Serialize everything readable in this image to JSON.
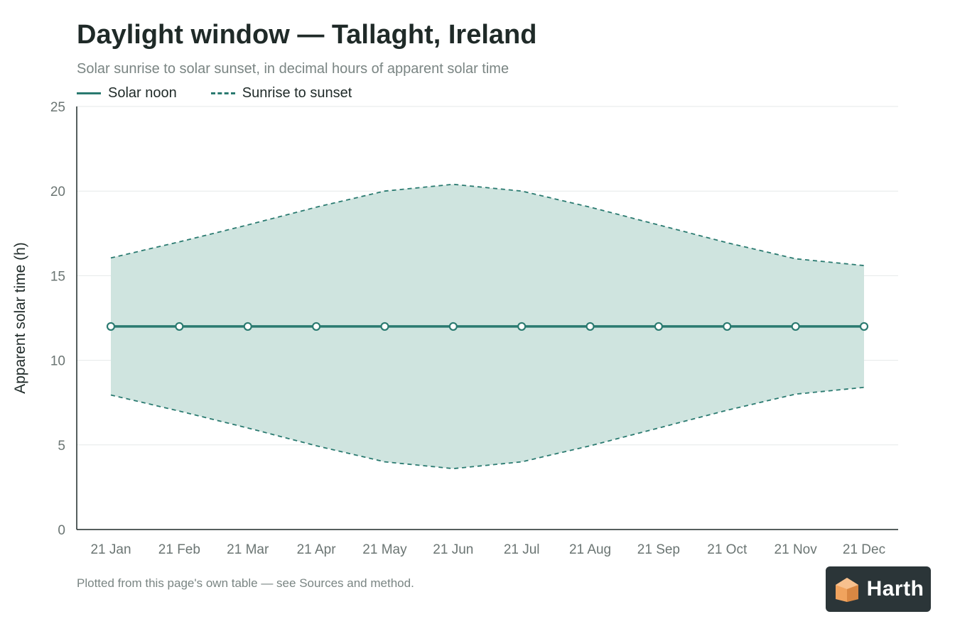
{
  "header": {
    "title": "Daylight window — Tallaght, Ireland",
    "subtitle": "Solar sunrise to solar sunset, in decimal hours of apparent solar time"
  },
  "legend": {
    "solar_noon": "Solar noon",
    "sunrise_sunset": "Sunrise to sunset"
  },
  "footnote": "Plotted from this page's own table — see Sources and method.",
  "brand": {
    "name": "Harth",
    "logo_icon": "house-cube-icon",
    "logo_color": "#f0a35e"
  },
  "colors": {
    "line": "#2a7a70",
    "band": "#cfe4df",
    "grid": "#e6e9e8",
    "axis": "#1f2a28",
    "tick_text": "#6b7573"
  },
  "chart_data": {
    "type": "area",
    "title": "Daylight window — Tallaght, Ireland",
    "subtitle": "Solar sunrise to solar sunset, in decimal hours of apparent solar time",
    "xlabel": "",
    "ylabel": "Apparent solar time (h)",
    "categories": [
      "21 Jan",
      "21 Feb",
      "21 Mar",
      "21 Apr",
      "21 May",
      "21 Jun",
      "21 Jul",
      "21 Aug",
      "21 Sep",
      "21 Oct",
      "21 Nov",
      "21 Dec"
    ],
    "ylim": [
      0,
      25
    ],
    "yticks": [
      0,
      5,
      10,
      15,
      20,
      25
    ],
    "grid": true,
    "legend_position": "top-left",
    "series": [
      {
        "name": "Solar noon",
        "style": "solid-markers",
        "values": [
          12,
          12,
          12,
          12,
          12,
          12,
          12,
          12,
          12,
          12,
          12,
          12
        ]
      },
      {
        "name": "Sunrise to sunset",
        "style": "dashed-band",
        "sunrise": [
          7.95,
          7.0,
          6.0,
          4.95,
          4.0,
          3.6,
          4.0,
          4.95,
          6.0,
          7.05,
          8.0,
          8.4
        ],
        "sunset": [
          16.05,
          17.0,
          18.0,
          19.05,
          20.0,
          20.4,
          20.0,
          19.05,
          18.0,
          16.95,
          16.0,
          15.6
        ]
      }
    ]
  }
}
